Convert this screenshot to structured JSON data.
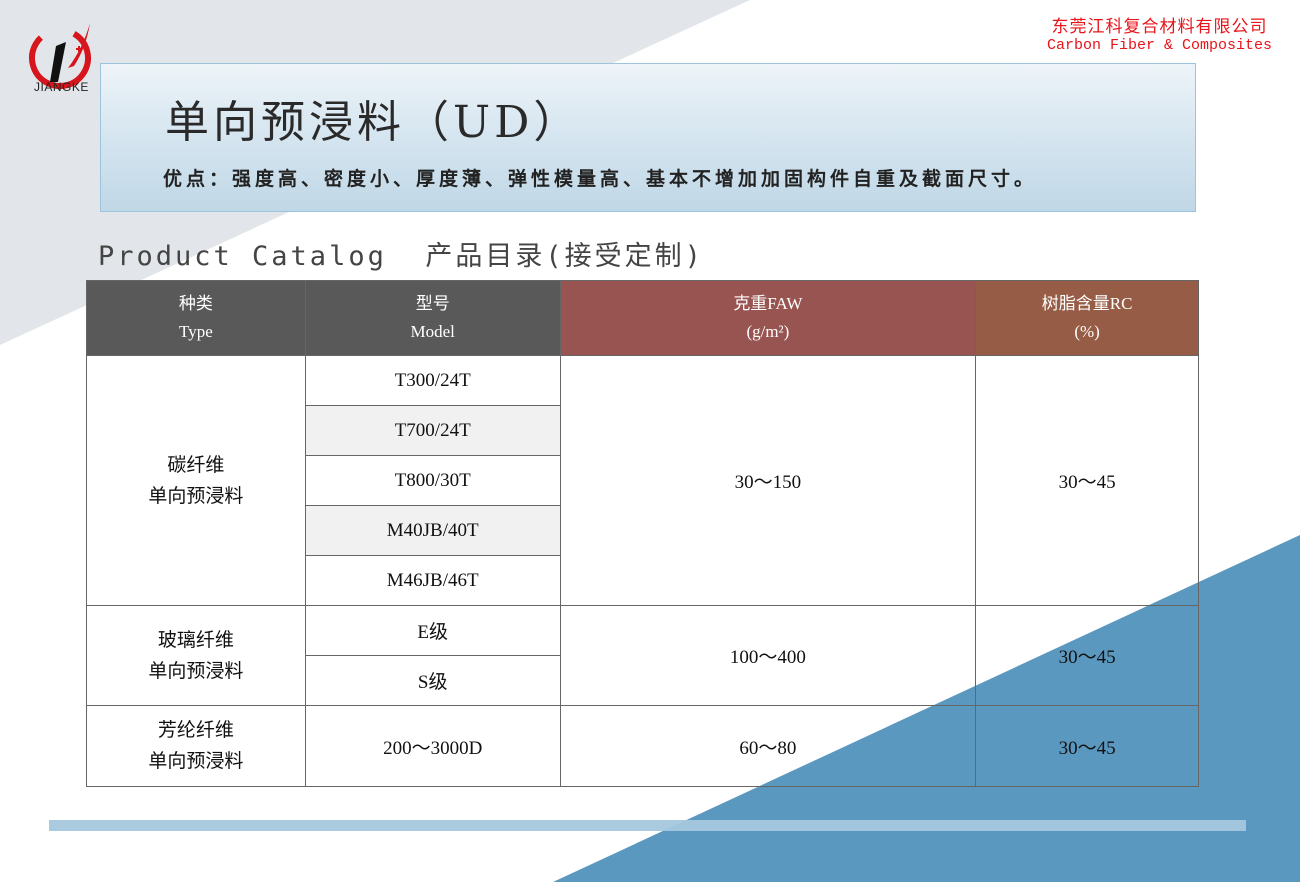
{
  "brand": {
    "logo_text": "JIANGKE",
    "company_cn": "东莞江科复合材料有限公司",
    "company_en": "Carbon Fiber & Composites"
  },
  "banner": {
    "title": "单向预浸料（UD）",
    "advantages": "优点：强度高、密度小、厚度薄、弹性模量高、基本不增加加固构件自重及截面尺寸。"
  },
  "catalog_heading": "Product Catalog  产品目录(接受定制)",
  "table": {
    "headers": [
      {
        "cn": "种类",
        "en": "Type"
      },
      {
        "cn": "型号",
        "en": "Model"
      },
      {
        "cn": "克重FAW",
        "en": "(g/m²)"
      },
      {
        "cn": "树脂含量RC",
        "en": "(%)"
      }
    ],
    "groups": [
      {
        "type_line1": "碳纤维",
        "type_line2": "单向预浸料",
        "models": [
          "T300/24T",
          "T700/24T",
          "T800/30T",
          "M40JB/40T",
          "M46JB/46T"
        ],
        "faw": "30～150",
        "rc": "30～45"
      },
      {
        "type_line1": "玻璃纤维",
        "type_line2": "单向预浸料",
        "models": [
          "E级",
          "S级"
        ],
        "faw": "100～400",
        "rc": "30～45"
      },
      {
        "type_line1": "芳纶纤维",
        "type_line2": "单向预浸料",
        "models": [
          "200～3000D"
        ],
        "faw": "60～80",
        "rc": "30～45"
      }
    ]
  },
  "colors": {
    "header_gray": "#595959",
    "header_faw": "#985450",
    "header_rc": "#975c45",
    "accent_blue": "#5b98c0",
    "brand_red": "#e8141a"
  }
}
